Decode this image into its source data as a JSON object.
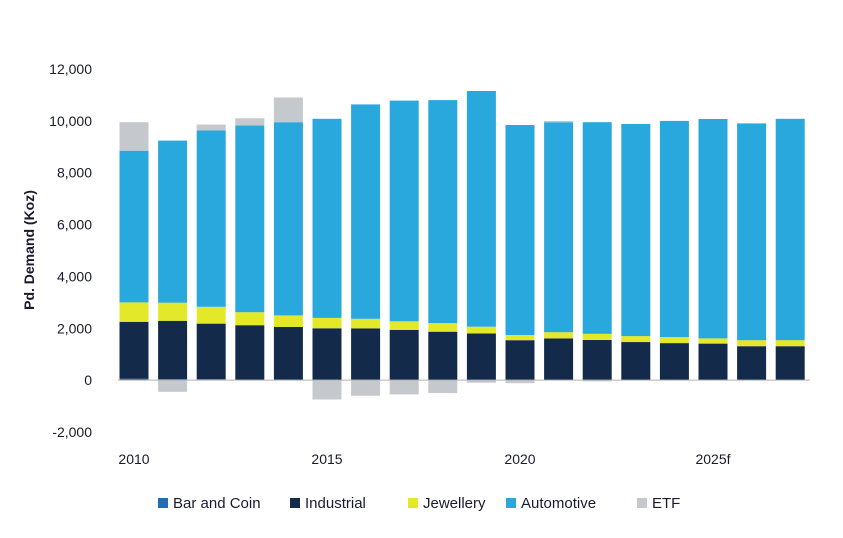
{
  "chart_data": {
    "type": "bar",
    "stacked": true,
    "title": "",
    "xlabel": "",
    "ylabel": "Pd. Demand (Koz)",
    "ylim": [
      -2000,
      12000
    ],
    "yticks": [
      -2000,
      0,
      2000,
      4000,
      6000,
      8000,
      10000,
      12000
    ],
    "ytick_labels": [
      "-2,000",
      "0",
      "2,000",
      "4,000",
      "6,000",
      "8,000",
      "10,000",
      "12,000"
    ],
    "categories": [
      "2010",
      "2011",
      "2012",
      "2013",
      "2014",
      "2015",
      "2016",
      "2017",
      "2018",
      "2019",
      "2020",
      "2021",
      "2022",
      "2023",
      "2024",
      "2025f",
      "2026f",
      "2027f"
    ],
    "xtick_labels": [
      {
        "index": 0,
        "label": "2010"
      },
      {
        "index": 5,
        "label": "2015"
      },
      {
        "index": 10,
        "label": "2020"
      },
      {
        "index": 15,
        "label": "2025f"
      }
    ],
    "grid": false,
    "legend_position": "bottom",
    "series": [
      {
        "name": "Bar and Coin",
        "color": "#1f6fb5",
        "values": [
          50,
          40,
          30,
          20,
          20,
          20,
          15,
          10,
          10,
          10,
          10,
          10,
          10,
          10,
          10,
          10,
          10,
          10
        ]
      },
      {
        "name": "Industrial",
        "color": "#142a4a",
        "values": [
          2200,
          2250,
          2150,
          2100,
          2030,
          1980,
          1980,
          1930,
          1860,
          1790,
          1530,
          1600,
          1540,
          1460,
          1420,
          1400,
          1300,
          1300
        ]
      },
      {
        "name": "Jewellery",
        "color": "#e3e829",
        "values": [
          750,
          700,
          650,
          500,
          450,
          400,
          370,
          330,
          330,
          260,
          200,
          240,
          240,
          230,
          230,
          200,
          230,
          230
        ]
      },
      {
        "name": "Automotive",
        "color": "#29a8de",
        "values": [
          5850,
          6250,
          6800,
          7200,
          7450,
          7680,
          8270,
          8510,
          8600,
          9090,
          8100,
          8100,
          8160,
          8180,
          8340,
          8460,
          8360,
          8540
        ]
      },
      {
        "name": "ETF",
        "color": "#c5c8cc",
        "values": [
          1100,
          -450,
          230,
          280,
          950,
          -750,
          -600,
          -550,
          -500,
          -100,
          -120,
          50,
          -50,
          0,
          0,
          0,
          0,
          0
        ]
      }
    ]
  }
}
